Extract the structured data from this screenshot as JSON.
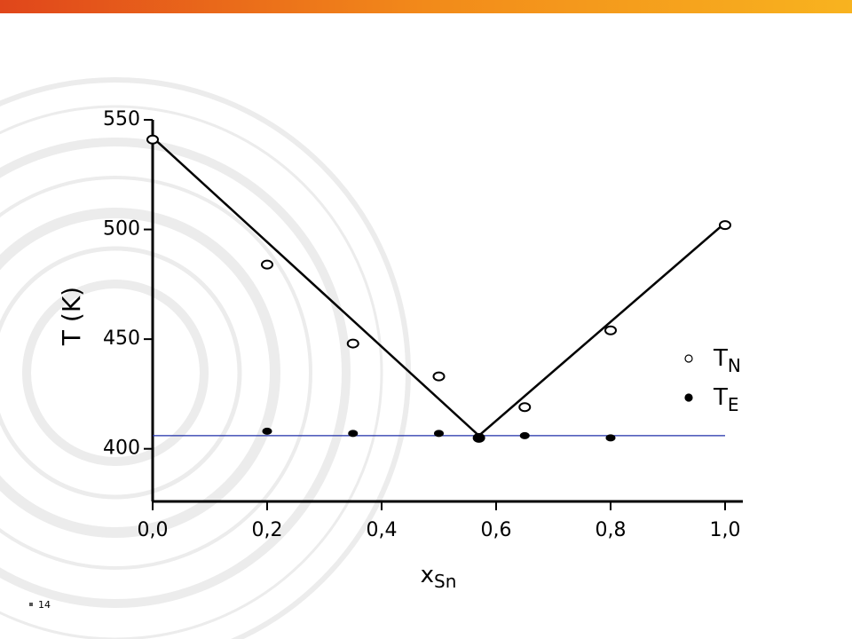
{
  "chart_data": {
    "type": "scatter",
    "xlabel": "x",
    "xlabel_sub": "Sn",
    "ylabel": "T (K)",
    "xlim": [
      0,
      1.0
    ],
    "ylim": [
      376,
      550
    ],
    "xticks": [
      {
        "value": 0,
        "label": "0,0"
      },
      {
        "value": 0.2,
        "label": "0,2"
      },
      {
        "value": 0.4,
        "label": "0,4"
      },
      {
        "value": 0.6,
        "label": "0,6"
      },
      {
        "value": 0.8,
        "label": "0,8"
      },
      {
        "value": 1.0,
        "label": "1,0"
      }
    ],
    "yticks": [
      400,
      450,
      500,
      550
    ],
    "series": [
      {
        "name": "T",
        "name_sub": "N",
        "marker": "open",
        "color": "#000000",
        "x": [
          0.0,
          0.2,
          0.35,
          0.5,
          0.57,
          0.65,
          0.8,
          1.0
        ],
        "values": [
          541,
          484,
          448,
          433,
          405,
          419,
          454,
          502
        ]
      },
      {
        "name": "T",
        "name_sub": "E",
        "marker": "filled",
        "color": "#000000",
        "x": [
          0.2,
          0.35,
          0.5,
          0.57,
          0.65,
          0.8
        ],
        "values": [
          408,
          407,
          407,
          405,
          406,
          405
        ]
      }
    ],
    "lines": [
      {
        "color": "#000000",
        "x": [
          0.0,
          0.57,
          1.0
        ],
        "values": [
          542,
          406,
          503
        ]
      },
      {
        "color": "#1f2fa8",
        "x": [
          0.0,
          1.0
        ],
        "values": [
          406,
          406
        ]
      }
    ]
  },
  "footer": {
    "page": "14"
  }
}
